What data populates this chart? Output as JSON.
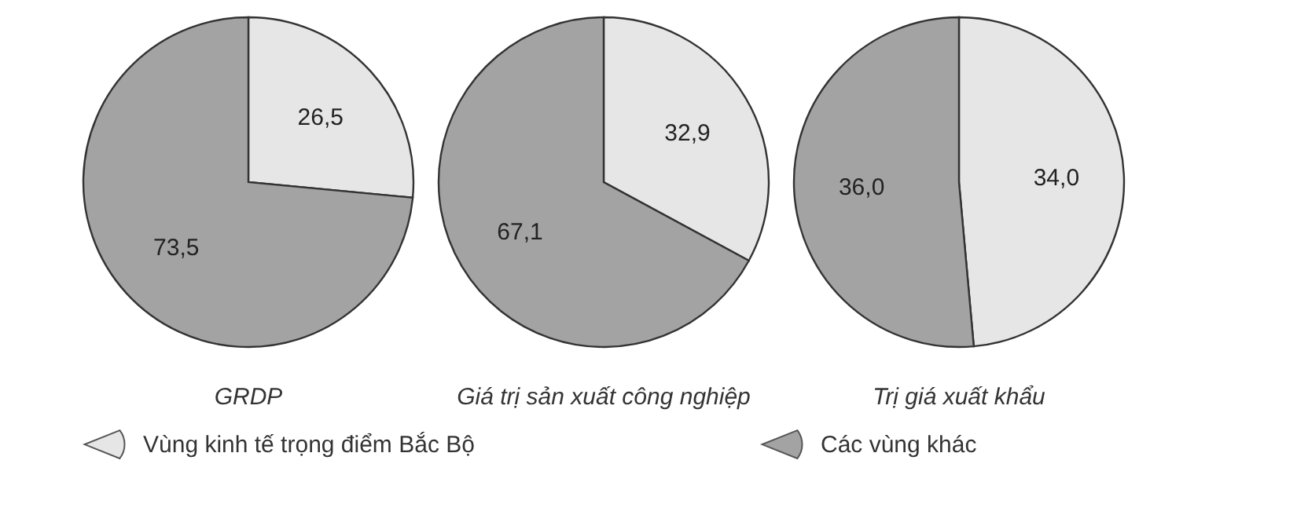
{
  "chart_data": [
    {
      "type": "pie",
      "title": "GRDP",
      "categories": [
        "Vùng kinh tế trọng điểm Bắc Bộ",
        "Các vùng khác"
      ],
      "values": [
        26.5,
        73.5
      ],
      "colors": [
        "#e6e6e6",
        "#a3a3a3"
      ],
      "value_labels": [
        "26,5",
        "73,5"
      ],
      "legend": "bottom"
    },
    {
      "type": "pie",
      "title": "Giá trị sản xuất công nghiệp",
      "values": [
        32.9,
        67.1
      ],
      "colors": [
        "#e6e6e6",
        "#a3a3a3"
      ],
      "value_labels": [
        "32,9",
        "67,1"
      ]
    },
    {
      "type": "pie",
      "title": "Trị giá xuất khẩu",
      "values": [
        34.0,
        36.0
      ],
      "colors": [
        "#e6e6e6",
        "#a3a3a3"
      ],
      "value_labels": [
        "34,0",
        "36,0"
      ]
    }
  ]
}
